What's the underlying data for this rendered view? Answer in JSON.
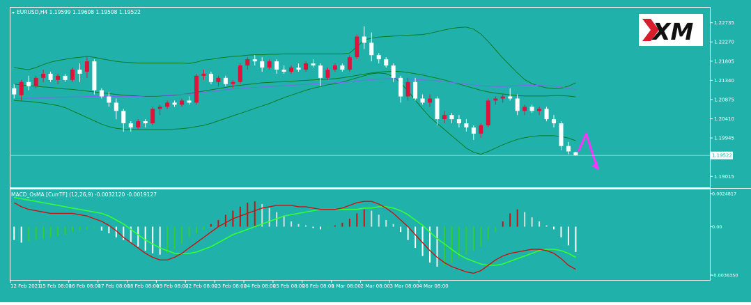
{
  "colors": {
    "background": "#20b2aa",
    "frame": "#ffffff",
    "bull": "#dc143c",
    "bear": "#ffffff",
    "bands": "#0a7a1f",
    "ma": "#7b68ee",
    "arrow": "#ff33ff",
    "macd_line": "#cc1111",
    "signal_line": "#33ff33",
    "hist_pos_up": "#cc1111",
    "hist_pos_down": "#dddddd",
    "hist_neg_down": "#ffffff",
    "hist_neg_up": "#33cc33",
    "text": "#ffffff"
  },
  "logo": {
    "text": "XM"
  },
  "chart_data": [
    {
      "type": "candlestick",
      "title": "EURUSD,H4  1.19599 1.19608 1.19508 1.19522",
      "ylim": [
        1.1875,
        1.231
      ],
      "price_ticks": [
        "1.22735",
        "1.22270",
        "1.21805",
        "1.21340",
        "1.20875",
        "1.20410",
        "1.19945",
        "1.19015"
      ],
      "current_price": "1.19522",
      "ohlc": [
        [
          1.2115,
          1.2125,
          1.209,
          1.21
        ],
        [
          1.2098,
          1.2135,
          1.2085,
          1.213
        ],
        [
          1.213,
          1.2145,
          1.211,
          1.212
        ],
        [
          1.212,
          1.2145,
          1.2115,
          1.214
        ],
        [
          1.214,
          1.216,
          1.213,
          1.215
        ],
        [
          1.215,
          1.2155,
          1.213,
          1.2135
        ],
        [
          1.2135,
          1.215,
          1.2125,
          1.2145
        ],
        [
          1.2145,
          1.215,
          1.213,
          1.2135
        ],
        [
          1.2135,
          1.2165,
          1.213,
          1.216
        ],
        [
          1.216,
          1.2175,
          1.213,
          1.215
        ],
        [
          1.2155,
          1.219,
          1.214,
          1.218
        ],
        [
          1.218,
          1.2185,
          1.21,
          1.211
        ],
        [
          1.211,
          1.2115,
          1.209,
          1.2095
        ],
        [
          1.2095,
          1.2105,
          1.207,
          1.208
        ],
        [
          1.208,
          1.209,
          1.204,
          1.206
        ],
        [
          1.206,
          1.2065,
          1.201,
          1.203
        ],
        [
          1.203,
          1.2035,
          1.201,
          1.202
        ],
        [
          1.202,
          1.204,
          1.2015,
          1.2035
        ],
        [
          1.2035,
          1.204,
          1.202,
          1.203
        ],
        [
          1.203,
          1.207,
          1.2025,
          1.2065
        ],
        [
          1.2065,
          1.2075,
          1.205,
          1.207
        ],
        [
          1.207,
          1.2085,
          1.2065,
          1.208
        ],
        [
          1.208,
          1.2085,
          1.207,
          1.2075
        ],
        [
          1.2075,
          1.209,
          1.207,
          1.2085
        ],
        [
          1.2085,
          1.2095,
          1.2075,
          1.208
        ],
        [
          1.208,
          1.215,
          1.2075,
          1.2145
        ],
        [
          1.2145,
          1.216,
          1.2135,
          1.215
        ],
        [
          1.215,
          1.2155,
          1.2125,
          1.213
        ],
        [
          1.213,
          1.2145,
          1.212,
          1.214
        ],
        [
          1.214,
          1.2145,
          1.212,
          1.2125
        ],
        [
          1.2125,
          1.2135,
          1.2115,
          1.213
        ],
        [
          1.213,
          1.2175,
          1.2125,
          1.217
        ],
        [
          1.217,
          1.219,
          1.216,
          1.2185
        ],
        [
          1.2185,
          1.2195,
          1.217,
          1.218
        ],
        [
          1.218,
          1.219,
          1.2155,
          1.2165
        ],
        [
          1.2165,
          1.2185,
          1.216,
          1.218
        ],
        [
          1.218,
          1.2185,
          1.215,
          1.216
        ],
        [
          1.216,
          1.217,
          1.215,
          1.2155
        ],
        [
          1.2155,
          1.217,
          1.215,
          1.2165
        ],
        [
          1.2165,
          1.2175,
          1.2155,
          1.216
        ],
        [
          1.216,
          1.218,
          1.2155,
          1.2175
        ],
        [
          1.2175,
          1.2185,
          1.2165,
          1.217
        ],
        [
          1.217,
          1.2175,
          1.212,
          1.214
        ],
        [
          1.214,
          1.2165,
          1.2135,
          1.216
        ],
        [
          1.216,
          1.2175,
          1.2155,
          1.217
        ],
        [
          1.217,
          1.2175,
          1.2155,
          1.216
        ],
        [
          1.216,
          1.2195,
          1.2155,
          1.219
        ],
        [
          1.219,
          1.2245,
          1.2185,
          1.224
        ],
        [
          1.224,
          1.2265,
          1.221,
          1.2225
        ],
        [
          1.2225,
          1.225,
          1.218,
          1.2195
        ],
        [
          1.2195,
          1.22,
          1.2175,
          1.2185
        ],
        [
          1.2185,
          1.219,
          1.2165,
          1.217
        ],
        [
          1.217,
          1.2175,
          1.213,
          1.214
        ],
        [
          1.214,
          1.2145,
          1.208,
          1.2095
        ],
        [
          1.2095,
          1.214,
          1.2085,
          1.213
        ],
        [
          1.213,
          1.214,
          1.2085,
          1.209
        ],
        [
          1.209,
          1.21,
          1.2075,
          1.208
        ],
        [
          1.208,
          1.21,
          1.207,
          1.209
        ],
        [
          1.209,
          1.2095,
          1.2025,
          1.204
        ],
        [
          1.204,
          1.206,
          1.203,
          1.205
        ],
        [
          1.205,
          1.2055,
          1.203,
          1.204
        ],
        [
          1.204,
          1.205,
          1.202,
          1.203
        ],
        [
          1.203,
          1.204,
          1.201,
          1.202
        ],
        [
          1.202,
          1.2025,
          1.199,
          1.2005
        ],
        [
          1.2005,
          1.203,
          1.1995,
          1.2025
        ],
        [
          1.2025,
          1.209,
          1.202,
          1.2085
        ],
        [
          1.2085,
          1.2095,
          1.2075,
          1.209
        ],
        [
          1.209,
          1.21,
          1.208,
          1.2095
        ],
        [
          1.2095,
          1.2115,
          1.2085,
          1.209
        ],
        [
          1.209,
          1.21,
          1.205,
          1.206
        ],
        [
          1.206,
          1.2075,
          1.205,
          1.207
        ],
        [
          1.207,
          1.2075,
          1.2055,
          1.206
        ],
        [
          1.206,
          1.207,
          1.205,
          1.2065
        ],
        [
          1.2065,
          1.207,
          1.2035,
          1.204
        ],
        [
          1.204,
          1.205,
          1.202,
          1.203
        ],
        [
          1.203,
          1.2035,
          1.1965,
          1.1975
        ],
        [
          1.1975,
          1.1985,
          1.1955,
          1.1962
        ],
        [
          1.196,
          1.1961,
          1.1951,
          1.1952
        ]
      ],
      "bollinger": {
        "upper": [
          1.2165,
          1.2162,
          1.216,
          1.2165,
          1.2172,
          1.2178,
          1.2182,
          1.2185,
          1.2188,
          1.219,
          1.2192,
          1.219,
          1.2186,
          1.2183,
          1.218,
          1.2178,
          1.2177,
          1.2176,
          1.2176,
          1.2176,
          1.2176,
          1.2176,
          1.2176,
          1.2176,
          1.2175,
          1.2178,
          1.2183,
          1.2185,
          1.2188,
          1.219,
          1.2192,
          1.2193,
          1.2195,
          1.2196,
          1.2196,
          1.2197,
          1.2197,
          1.2198,
          1.2198,
          1.2198,
          1.2198,
          1.2198,
          1.2198,
          1.2198,
          1.2198,
          1.2198,
          1.22,
          1.2215,
          1.2232,
          1.2236,
          1.2239,
          1.224,
          1.2241,
          1.2242,
          1.2243,
          1.2244,
          1.2245,
          1.2248,
          1.2252,
          1.2256,
          1.226,
          1.2262,
          1.2263,
          1.2258,
          1.2246,
          1.2228,
          1.2208,
          1.2188,
          1.217,
          1.2152,
          1.2136,
          1.2126,
          1.212,
          1.2116,
          1.2114,
          1.2115,
          1.212,
          1.2128
        ],
        "middle": [
          1.2125,
          1.2123,
          1.2121,
          1.212,
          1.2118,
          1.2117,
          1.2115,
          1.2113,
          1.2112,
          1.211,
          1.2108,
          1.2106,
          1.2104,
          1.2102,
          1.21,
          1.2098,
          1.2097,
          1.2096,
          1.2095,
          1.2095,
          1.2096,
          1.2097,
          1.2098,
          1.21,
          1.2102,
          1.2105,
          1.2108,
          1.2111,
          1.2114,
          1.2117,
          1.212,
          1.2122,
          1.2124,
          1.2126,
          1.2128,
          1.2129,
          1.213,
          1.2131,
          1.2132,
          1.2133,
          1.2134,
          1.2135,
          1.2136,
          1.2137,
          1.2138,
          1.214,
          1.2143,
          1.2146,
          1.2149,
          1.2152,
          1.2154,
          1.2155,
          1.2156,
          1.2155,
          1.2153,
          1.215,
          1.2147,
          1.2143,
          1.2139,
          1.2135,
          1.213,
          1.2125,
          1.212,
          1.2115,
          1.211,
          1.2106,
          1.2103,
          1.2101,
          1.2099,
          1.2097,
          1.2096,
          1.2096,
          1.2096,
          1.2096,
          1.2097,
          1.2097,
          1.2096,
          1.2094
        ],
        "lower": [
          1.2085,
          1.2084,
          1.2083,
          1.2081,
          1.2079,
          1.2076,
          1.2073,
          1.2068,
          1.206,
          1.2052,
          1.2044,
          1.2036,
          1.2028,
          1.2022,
          1.2018,
          1.2016,
          1.2015,
          1.2015,
          1.2015,
          1.2015,
          1.2015,
          1.2015,
          1.2016,
          1.2017,
          1.2019,
          1.2022,
          1.2025,
          1.203,
          1.2036,
          1.2042,
          1.2048,
          1.2054,
          1.206,
          1.2066,
          1.2072,
          1.2078,
          1.2085,
          1.2092,
          1.2098,
          1.2104,
          1.211,
          1.2115,
          1.2119,
          1.2123,
          1.2126,
          1.213,
          1.2135,
          1.214,
          1.2145,
          1.215,
          1.2152,
          1.215,
          1.2143,
          1.2128,
          1.2108,
          1.2086,
          1.2065,
          1.2045,
          1.203,
          1.2015,
          1.2,
          1.1985,
          1.197,
          1.196,
          1.1955,
          1.1962,
          1.197,
          1.1978,
          1.1985,
          1.1991,
          1.1995,
          1.1998,
          1.2,
          1.2,
          1.2,
          1.1998,
          1.1994,
          1.1988
        ]
      },
      "ma": [
        1.209,
        1.209,
        1.2091,
        1.2091,
        1.2092,
        1.2092,
        1.2093,
        1.2093,
        1.2094,
        1.2094,
        1.2095,
        1.2095,
        1.2095,
        1.2095,
        1.2095,
        1.2095,
        1.2095,
        1.2095,
        1.2096,
        1.2096,
        1.2097,
        1.2098,
        1.2099,
        1.21,
        1.2101,
        1.2103,
        1.2105,
        1.2107,
        1.2109,
        1.2111,
        1.2113,
        1.2114,
        1.2116,
        1.2117,
        1.2118,
        1.2119,
        1.212,
        1.2121,
        1.2122,
        1.2123,
        1.2124,
        1.2125,
        1.2126,
        1.2127,
        1.2128,
        1.2129,
        1.213,
        1.2132,
        1.2134,
        1.2136,
        1.2137,
        1.2138,
        1.2138,
        1.2138,
        1.2137,
        1.2136,
        1.2135,
        1.2134,
        1.2133,
        1.2131,
        1.2129,
        1.2127,
        1.2125,
        1.2123,
        1.2121,
        1.212,
        1.2119,
        1.2119,
        1.212,
        1.2121,
        1.2122,
        1.2122,
        1.2122,
        1.2121,
        1.212,
        1.2118,
        1.2115,
        1.2112
      ],
      "arrow": [
        [
          1.1962,
          1.2005,
          1.1925
        ]
      ]
    },
    {
      "type": "histogram",
      "title": "MACD_OsMA [CurrTF] (12,26,9) -0.0032120 -0.0019127",
      "ylim": [
        -0.004,
        0.0028
      ],
      "value_ticks": [
        "0.0024817",
        "0.00",
        "-0.0036350"
      ],
      "histogram": [
        -0.001,
        -0.0012,
        -0.0011,
        -0.001,
        -0.0009,
        -0.0008,
        -0.0007,
        -0.0006,
        -0.0004,
        -0.0003,
        -0.0002,
        -0.0001,
        -0.0003,
        -0.0005,
        -0.0008,
        -0.001,
        -0.0012,
        -0.0015,
        -0.0018,
        -0.002,
        -0.0021,
        -0.002,
        -0.0017,
        -0.0013,
        -0.0008,
        -0.0005,
        -0.0002,
        0.0002,
        0.0005,
        0.0009,
        0.0012,
        0.0015,
        0.0018,
        0.0019,
        0.0017,
        0.0014,
        0.0011,
        0.0008,
        0.0004,
        0.0002,
        0.0001,
        -0.0001,
        -0.0002,
        -0.0001,
        0.0001,
        0.0003,
        0.0006,
        0.001,
        0.0013,
        0.0012,
        0.0009,
        0.0005,
        0.0002,
        -0.0004,
        -0.001,
        -0.0016,
        -0.0022,
        -0.0027,
        -0.003,
        -0.0029,
        -0.0027,
        -0.0024,
        -0.0021,
        -0.0018,
        -0.0015,
        -0.001,
        -0.0004,
        0.0004,
        0.001,
        0.0013,
        0.0011,
        0.0007,
        0.0004,
        0.0001,
        -0.0002,
        -0.0008,
        -0.0014,
        -0.0019
      ],
      "macd": [
        0.0018,
        0.0015,
        0.0013,
        0.0012,
        0.0011,
        0.001,
        0.001,
        0.001,
        0.001,
        0.0009,
        0.0008,
        0.0006,
        0.0004,
        0.0001,
        -0.0003,
        -0.0008,
        -0.0012,
        -0.0016,
        -0.002,
        -0.0023,
        -0.0025,
        -0.0025,
        -0.0023,
        -0.002,
        -0.0016,
        -0.0012,
        -0.0008,
        -0.0004,
        0.0,
        0.0003,
        0.0006,
        0.0008,
        0.001,
        0.0012,
        0.0014,
        0.0015,
        0.0016,
        0.0016,
        0.0016,
        0.0015,
        0.0015,
        0.0014,
        0.0013,
        0.0013,
        0.0013,
        0.0014,
        0.0016,
        0.0018,
        0.0019,
        0.0019,
        0.0017,
        0.0014,
        0.001,
        0.0005,
        0.0,
        -0.0006,
        -0.0012,
        -0.0018,
        -0.0023,
        -0.0027,
        -0.003,
        -0.0032,
        -0.0034,
        -0.0035,
        -0.0033,
        -0.0029,
        -0.0025,
        -0.0022,
        -0.002,
        -0.0019,
        -0.0018,
        -0.0017,
        -0.0017,
        -0.0018,
        -0.002,
        -0.0024,
        -0.0029,
        -0.0032
      ],
      "signal": [
        0.0022,
        0.0021,
        0.002,
        0.0019,
        0.0018,
        0.0017,
        0.0016,
        0.0015,
        0.0014,
        0.0013,
        0.0012,
        0.0011,
        0.001,
        0.0008,
        0.0005,
        0.0002,
        -0.0002,
        -0.0006,
        -0.001,
        -0.0013,
        -0.0016,
        -0.0018,
        -0.002,
        -0.002,
        -0.002,
        -0.0019,
        -0.0017,
        -0.0015,
        -0.0012,
        -0.0009,
        -0.0006,
        -0.0004,
        -0.0002,
        0.0,
        0.0002,
        0.0004,
        0.0006,
        0.0008,
        0.0009,
        0.001,
        0.0011,
        0.0012,
        0.0013,
        0.0013,
        0.0013,
        0.0013,
        0.0013,
        0.0013,
        0.0014,
        0.0014,
        0.0015,
        0.0015,
        0.0014,
        0.0012,
        0.0009,
        0.0005,
        0.0001,
        -0.0004,
        -0.0009,
        -0.0013,
        -0.0017,
        -0.0021,
        -0.0024,
        -0.0026,
        -0.0028,
        -0.0029,
        -0.0029,
        -0.0028,
        -0.0026,
        -0.0024,
        -0.0022,
        -0.002,
        -0.0018,
        -0.0017,
        -0.0017,
        -0.0018,
        -0.002,
        -0.0023
      ]
    }
  ],
  "time_axis": {
    "labels": [
      "12 Feb 2021",
      "15 Feb 08:00",
      "16 Feb 08:00",
      "17 Feb 08:00",
      "18 Feb 08:00",
      "19 Feb 08:00",
      "22 Feb 08:00",
      "23 Feb 08:00",
      "24 Feb 08:00",
      "25 Feb 08:00",
      "26 Feb 08:00",
      "1 Mar 08:00",
      "2 Mar 08:00",
      "3 Mar 08:00",
      "4 Mar 08:00"
    ],
    "label_index": [
      0,
      8,
      16,
      24,
      32,
      40,
      48,
      56,
      64,
      72,
      80,
      88,
      96,
      104,
      112
    ]
  }
}
